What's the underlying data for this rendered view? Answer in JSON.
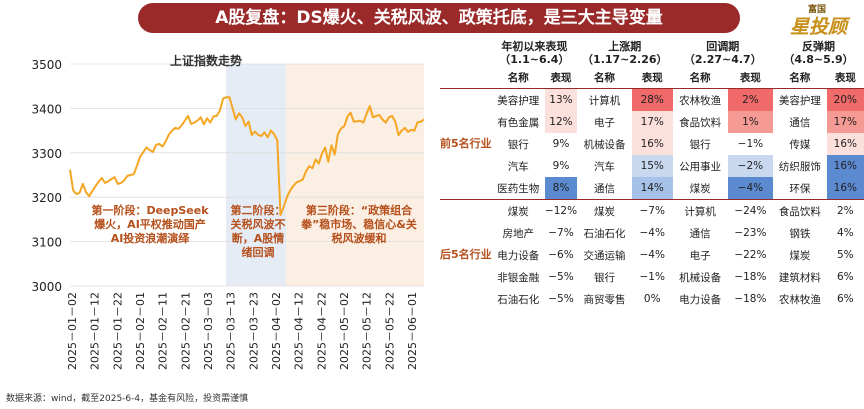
{
  "title": "A股复盘：DS爆火、关税风波、政策托底，是三大主导变量",
  "logo": {
    "top": "富国",
    "main": "星投顾"
  },
  "source": "数据来源：wind，截至2025-6-4，基金有风险，投资需谨慎",
  "chart_data": {
    "type": "line",
    "title": "上证指数走势",
    "ylim": [
      3000,
      3500
    ],
    "yticks": [
      3000,
      3100,
      3200,
      3300,
      3400,
      3500
    ],
    "xticks": [
      "2025－01－02",
      "2025－01－12",
      "2025－01－22",
      "2025－02－01",
      "2025－02－11",
      "2025－02－21",
      "2025－03－03",
      "2025－03－13",
      "2025－03－23",
      "2025－04－02",
      "2025－04－12",
      "2025－04－22",
      "2025－05－02",
      "2025－05－12",
      "2025－05－22",
      "2025－06－01"
    ],
    "values": [
      3262,
      3215,
      3207,
      3210,
      3230,
      3212,
      3202,
      3214,
      3225,
      3235,
      3243,
      3232,
      3236,
      3241,
      3245,
      3230,
      3232,
      3238,
      3248,
      3250,
      3252,
      3271,
      3292,
      3302,
      3312,
      3306,
      3302,
      3318,
      3320,
      3314,
      3326,
      3341,
      3350,
      3356,
      3354,
      3362,
      3372,
      3383,
      3365,
      3368,
      3373,
      3380,
      3364,
      3378,
      3368,
      3382,
      3383,
      3395,
      3422,
      3425,
      3425,
      3400,
      3375,
      3389,
      3380,
      3360,
      3370,
      3340,
      3348,
      3340,
      3338,
      3346,
      3335,
      3350,
      3342,
      3328,
      3160,
      3178,
      3200,
      3215,
      3225,
      3233,
      3236,
      3240,
      3258,
      3270,
      3265,
      3285,
      3276,
      3298,
      3312,
      3280,
      3317,
      3296,
      3342,
      3355,
      3360,
      3382,
      3390,
      3370,
      3371,
      3372,
      3368,
      3388,
      3405,
      3380,
      3383,
      3385,
      3375,
      3368,
      3380,
      3383,
      3370,
      3340,
      3350,
      3356,
      3347,
      3352,
      3350,
      3369,
      3370,
      3375
    ],
    "stages": [
      {
        "label": "第一阶段：DeepSeek爆火，AI平权推动国产AI投资浪潮演绎"
      },
      {
        "label": "第二阶段：关税风波不断，A股情绪回调"
      },
      {
        "label": "第三阶段：“政策组合拳”稳市场、稳信心&关税风波缓和"
      }
    ]
  },
  "table": {
    "periods": [
      {
        "name": "年初以来表现",
        "range": "（1.1~6.4）"
      },
      {
        "name": "上涨期",
        "range": "（1.17~2.26）"
      },
      {
        "name": "回调期",
        "range": "（2.27~4.7）"
      },
      {
        "name": "反弹期",
        "range": "（4.8~5.9）"
      }
    ],
    "col_name": "名称",
    "col_perf": "表现",
    "top_label": "前5名行业",
    "bottom_label": "后5名行业",
    "top": [
      [
        [
          "美容护理",
          "13%"
        ],
        [
          "计算机",
          "28%"
        ],
        [
          "农林牧渔",
          "2%"
        ],
        [
          "美容护理",
          "20%"
        ]
      ],
      [
        [
          "有色金属",
          "12%"
        ],
        [
          "电子",
          "17%"
        ],
        [
          "食品饮料",
          "1%"
        ],
        [
          "通信",
          "17%"
        ]
      ],
      [
        [
          "银行",
          "9%"
        ],
        [
          "机械设备",
          "16%"
        ],
        [
          "银行",
          "−1%"
        ],
        [
          "传媒",
          "16%"
        ]
      ],
      [
        [
          "汽车",
          "9%"
        ],
        [
          "汽车",
          "15%"
        ],
        [
          "公用事业",
          "−2%"
        ],
        [
          "纺织服饰",
          "16%"
        ]
      ],
      [
        [
          "医药生物",
          "8%"
        ],
        [
          "通信",
          "14%"
        ],
        [
          "煤炭",
          "−4%"
        ],
        [
          "环保",
          "16%"
        ]
      ]
    ],
    "bottom": [
      [
        [
          "煤炭",
          "−12%"
        ],
        [
          "煤炭",
          "−7%"
        ],
        [
          "计算机",
          "−24%"
        ],
        [
          "食品饮料",
          "2%"
        ]
      ],
      [
        [
          "房地产",
          "−7%"
        ],
        [
          "石油石化",
          "−4%"
        ],
        [
          "通信",
          "−23%"
        ],
        [
          "钢铁",
          "4%"
        ]
      ],
      [
        [
          "电力设备",
          "−6%"
        ],
        [
          "交通运输",
          "−4%"
        ],
        [
          "电子",
          "−22%"
        ],
        [
          "煤炭",
          "5%"
        ]
      ],
      [
        [
          "非银金融",
          "−5%"
        ],
        [
          "银行",
          "−1%"
        ],
        [
          "机械设备",
          "−18%"
        ],
        [
          "建筑材料",
          "6%"
        ]
      ],
      [
        [
          "石油石化",
          "−5%"
        ],
        [
          "商贸零售",
          "0%"
        ],
        [
          "电力设备",
          "−18%"
        ],
        [
          "农林牧渔",
          "6%"
        ]
      ]
    ],
    "top_colors": [
      [
        "#fbe0dc",
        "#f06a6a",
        "#f06a6a",
        "#f06a6a"
      ],
      [
        "#fbe0dc",
        "#fbe0dc",
        "#f59a94",
        "#f59a94"
      ],
      [
        "#ffffff",
        "#fbe0dc",
        "#ffffff",
        "#fbe0dc"
      ],
      [
        "#ffffff",
        "#c8d9ef",
        "#c8d9ef",
        "#5b8ad0"
      ],
      [
        "#5b8ad0",
        "#a6c2e8",
        "#5b8ad0",
        "#5b8ad0"
      ]
    ]
  }
}
